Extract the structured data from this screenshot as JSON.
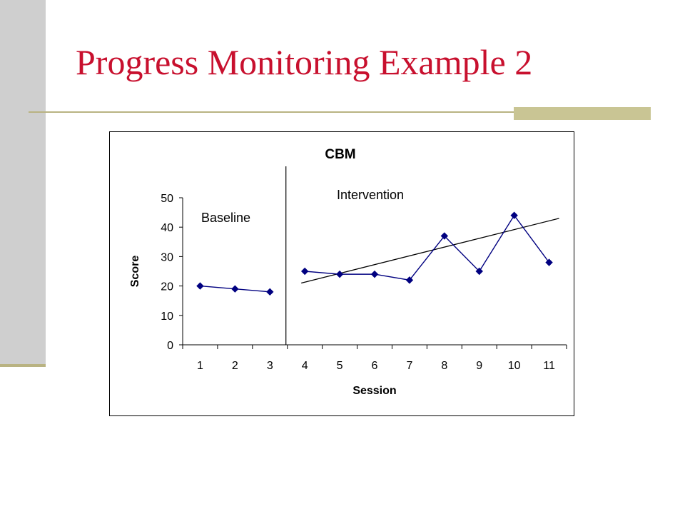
{
  "slide": {
    "title": "Progress Monitoring Example 2"
  },
  "colors": {
    "title": "#c8102e",
    "accent_rule": "#b9b382",
    "side_bar": "#cfcfcf",
    "series": "#000080"
  },
  "chart_data": {
    "type": "line",
    "title": "CBM",
    "xlabel": "Session",
    "ylabel": "Score",
    "ylim": [
      0,
      50
    ],
    "yticks": [
      0,
      10,
      20,
      30,
      40,
      50
    ],
    "x": [
      1,
      2,
      3,
      4,
      5,
      6,
      7,
      8,
      9,
      10,
      11
    ],
    "grid": false,
    "legend": "none",
    "phases": [
      {
        "label": "Baseline",
        "sessions": [
          1,
          2,
          3
        ]
      },
      {
        "label": "Intervention",
        "sessions": [
          4,
          5,
          6,
          7,
          8,
          9,
          10,
          11
        ]
      }
    ],
    "phase_change_after_session": 3,
    "series": [
      {
        "phase": "Baseline",
        "x": [
          1,
          2,
          3
        ],
        "values": [
          20,
          19,
          18
        ],
        "marker": "diamond"
      },
      {
        "phase": "Intervention",
        "x": [
          4,
          5,
          6,
          7,
          8,
          9,
          10,
          11
        ],
        "values": [
          25,
          24,
          24,
          22,
          37,
          25,
          44,
          28
        ],
        "marker": "diamond"
      }
    ],
    "trendline": {
      "x": [
        4,
        11
      ],
      "y": [
        21,
        43
      ]
    }
  }
}
